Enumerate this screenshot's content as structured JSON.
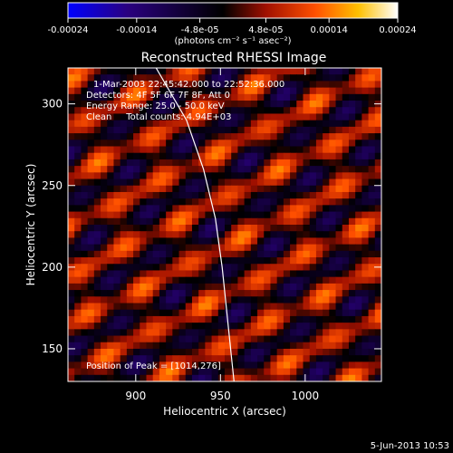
{
  "chart_data": {
    "type": "heatmap",
    "title": "Reconstructed RHESSI Image",
    "xlabel": "Heliocentric X (arcsec)",
    "ylabel": "Heliocentric Y (arcsec)",
    "xlim": [
      860,
      1045
    ],
    "ylim": [
      130,
      322
    ],
    "xticks": [
      900,
      950,
      1000
    ],
    "yticks": [
      150,
      200,
      250,
      300
    ],
    "xtick_labels": [
      "900",
      "950",
      "1000"
    ],
    "ytick_labels": [
      "150",
      "200",
      "250",
      "300"
    ],
    "colorbar": {
      "range": [
        -0.00024,
        0.00024
      ],
      "ticks": [
        -0.00024,
        -0.00014,
        -4.8e-05,
        4.8e-05,
        0.00014,
        0.00024
      ],
      "tick_labels": [
        "-0.00024",
        "-0.00014",
        "-4.8e-05",
        "4.8e-05",
        "0.00014",
        "0.00024"
      ],
      "units_label": "(photons cm⁻² s⁻¹ asec⁻²)",
      "colors": [
        "#0000ff",
        "#2a0080",
        "#000000",
        "#a01000",
        "#ff5000",
        "#ffc000",
        "#ffffff"
      ]
    },
    "annotations": [
      "1-Mar-2003 22:45:42.000 to 22:52:36.000",
      "Detectors: 4F 5F 6F 7F 8F, Att 0",
      "Energy Range: 25.0 - 50.0 keV",
      "Clean     Total counts: 4.94E+03"
    ],
    "peak_label": "Position of Peak = [1014,276]",
    "peak": [
      1014,
      276
    ],
    "limb_curve": {
      "points": [
        [
          912,
          322
        ],
        [
          930,
          290
        ],
        [
          940,
          260
        ],
        [
          947,
          230
        ],
        [
          951,
          200
        ],
        [
          954,
          170
        ],
        [
          957,
          140
        ],
        [
          958,
          130
        ]
      ]
    }
  },
  "footer": {
    "date": "5-Jun-2013 10:53"
  }
}
